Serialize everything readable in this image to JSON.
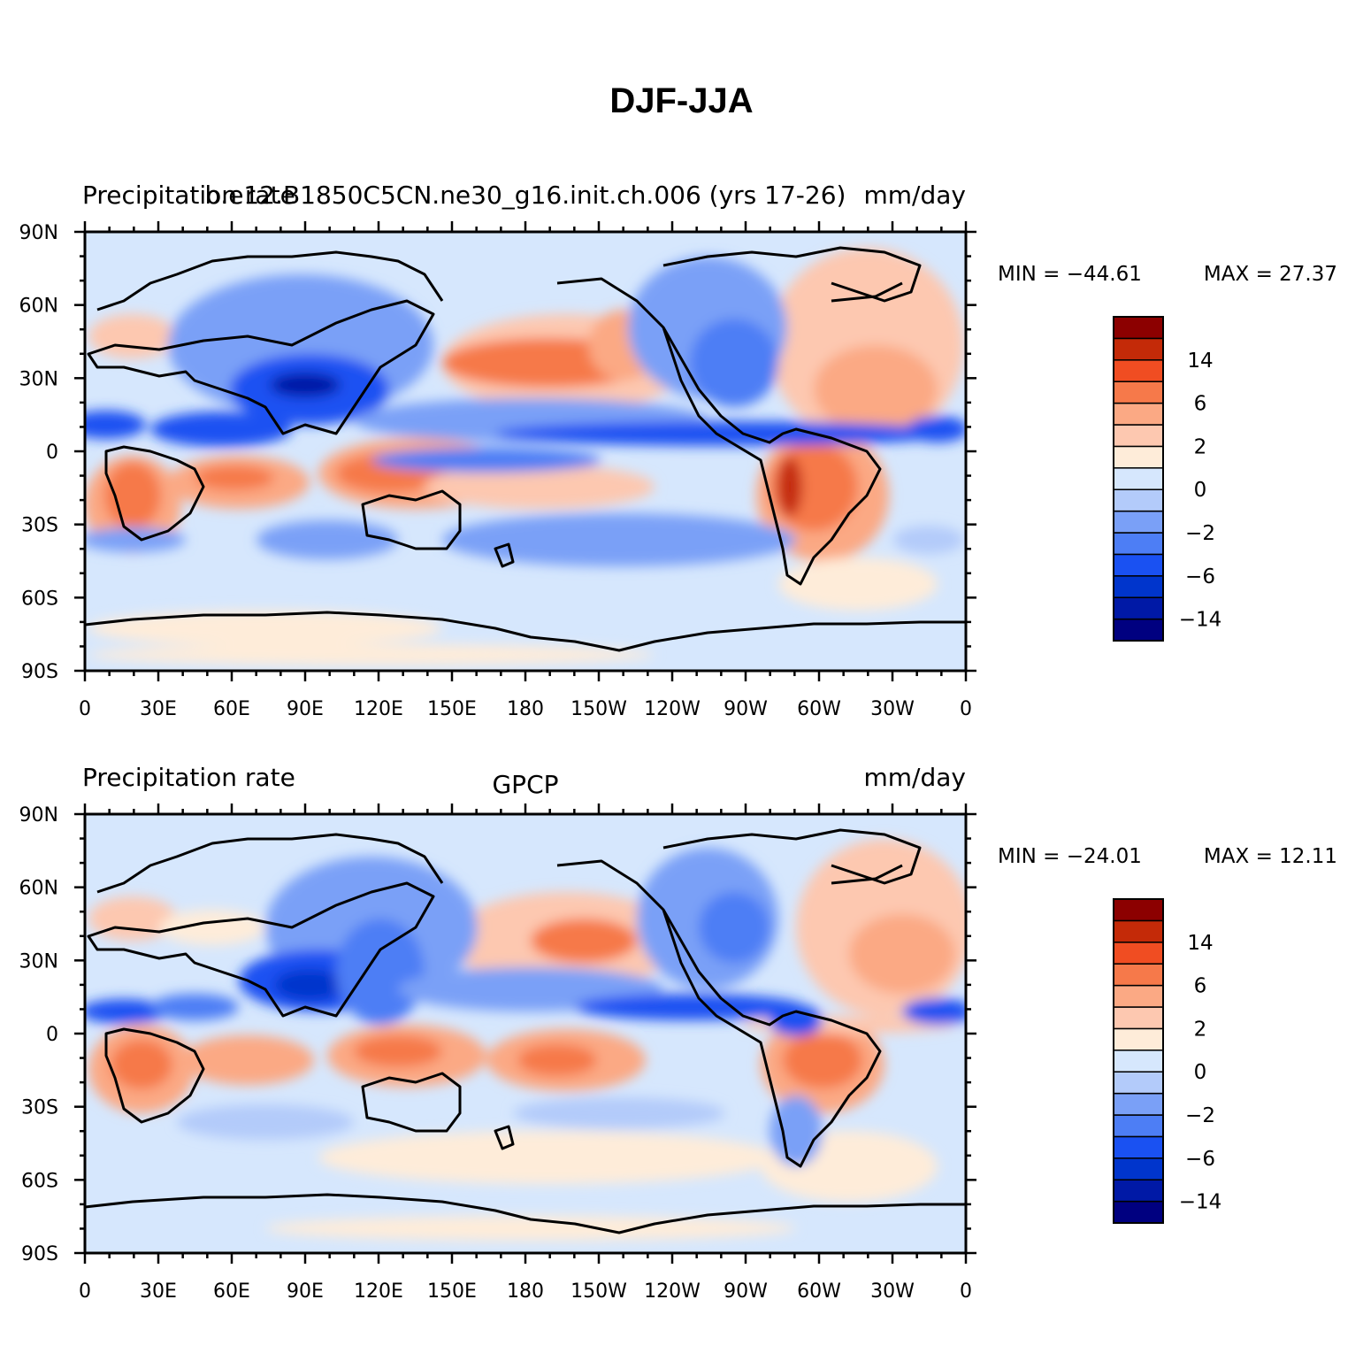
{
  "title": "DJF-JJA",
  "x_ticks": [
    "0",
    "30E",
    "60E",
    "90E",
    "120E",
    "150E",
    "180",
    "150W",
    "120W",
    "90W",
    "60W",
    "30W",
    "0"
  ],
  "y_ticks": [
    "90N",
    "60N",
    "30N",
    "0",
    "30S",
    "60S",
    "90S"
  ],
  "colorbar": {
    "colors": [
      "#000080",
      "#0019a6",
      "#0035cc",
      "#1a51f2",
      "#4d7ef5",
      "#7aa0f7",
      "#b3cbfa",
      "#d6e7fd",
      "#feecd9",
      "#fdc8b0",
      "#fba984",
      "#f6794a",
      "#f04d22",
      "#c42a08",
      "#8c0000"
    ],
    "labels": [
      "14",
      "6",
      "2",
      "0",
      "−2",
      "−6",
      "−14"
    ]
  },
  "panels": [
    {
      "left_label": "Precipitation rate",
      "center_label": "b.e12.B1850C5CN.ne30_g16.init.ch.006 (yrs 17-26)",
      "right_label": "mm/day",
      "min_label": "MIN = −44.61",
      "max_label": "MAX =  27.37"
    },
    {
      "left_label": "Precipitation rate",
      "center_label": "GPCP",
      "right_label": "mm/day",
      "min_label": "MIN = −24.01",
      "max_label": "MAX =  12.11"
    }
  ]
}
